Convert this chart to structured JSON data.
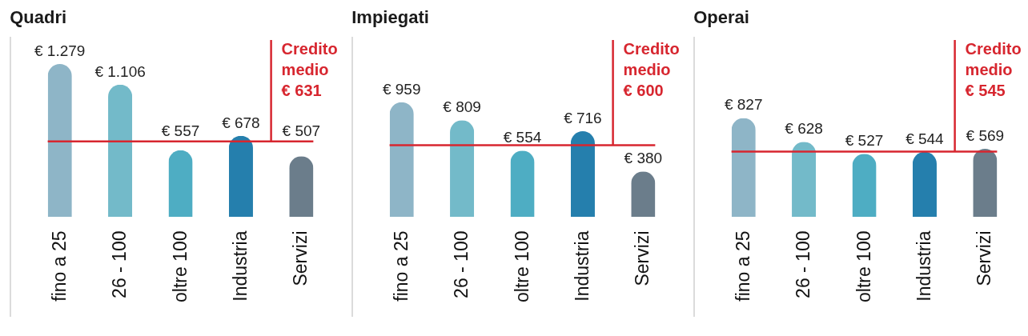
{
  "chart_data": [
    {
      "type": "bar",
      "title": "Quadri",
      "categories": [
        "fino a 25",
        "26 - 100",
        "oltre 100",
        "Industria",
        "Servizi"
      ],
      "values": [
        1279,
        1106,
        557,
        678,
        507
      ],
      "colors": [
        "#8eb5c7",
        "#73bac9",
        "#4eadc3",
        "#257fad",
        "#6b7d8b"
      ],
      "value_labels": [
        "€ 1.279",
        "€ 1.106",
        "€ 557",
        "€ 678",
        "€ 507"
      ],
      "ref_lines": [
        {
          "axis": "y",
          "value": 631,
          "label": "Credito\nmedio\n€ 631",
          "color": "#d7262f"
        }
      ],
      "tick_labels": "x"
    },
    {
      "type": "bar",
      "title": "Impiegati",
      "categories": [
        "fino a 25",
        "26 - 100",
        "oltre 100",
        "Industria",
        "Servizi"
      ],
      "values": [
        959,
        809,
        554,
        716,
        380
      ],
      "colors": [
        "#8eb5c7",
        "#73bac9",
        "#4eadc3",
        "#257fad",
        "#6b7d8b"
      ],
      "value_labels": [
        "€ 959",
        "€ 809",
        "€ 554",
        "€ 716",
        "€ 380"
      ],
      "ref_lines": [
        {
          "axis": "y",
          "value": 600,
          "label": "Credito\nmedio\n€ 600",
          "color": "#d7262f"
        }
      ],
      "tick_labels": "x"
    },
    {
      "type": "bar",
      "title": "Operai",
      "categories": [
        "fino a 25",
        "26 - 100",
        "oltre 100",
        "Industria",
        "Servizi"
      ],
      "values": [
        827,
        628,
        527,
        544,
        569
      ],
      "colors": [
        "#8eb5c7",
        "#73bac9",
        "#4eadc3",
        "#257fad",
        "#6b7d8b"
      ],
      "value_labels": [
        "€ 827",
        "€ 628",
        "€ 527",
        "€ 544",
        "€ 569"
      ],
      "ref_lines": [
        {
          "axis": "y",
          "value": 545,
          "label": "Credito\nmedio\n€ 545",
          "color": "#d7262f"
        }
      ],
      "tick_labels": "x"
    }
  ]
}
